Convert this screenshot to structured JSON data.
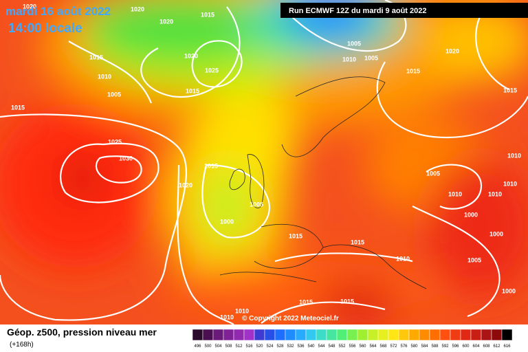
{
  "header": {
    "date": "mardi 16 août 2022",
    "time": "14:00 locale",
    "run": "Run ECMWF 12Z du mardi 9 août 2022"
  },
  "copyright": "© Copyright 2022 Meteociel.fr",
  "legend": {
    "title": "Géop. z500, pression niveau mer",
    "lead": "(+168h)",
    "scale": [
      "496",
      "500",
      "504",
      "508",
      "512",
      "516",
      "520",
      "524",
      "528",
      "532",
      "536",
      "540",
      "544",
      "548",
      "552",
      "556",
      "560",
      "564",
      "568",
      "572",
      "576",
      "580",
      "584",
      "588",
      "592",
      "596",
      "600",
      "604",
      "608",
      "612",
      "616"
    ]
  },
  "isobar_labels": [
    "1020",
    "1020",
    "1015",
    "1020",
    "1015",
    "1020",
    "1010",
    "1025",
    "1005",
    "1015",
    "1015",
    "1025",
    "1030",
    "1015",
    "1020",
    "1005",
    "1000",
    "1015",
    "1015",
    "1010",
    "1005",
    "1010",
    "1005",
    "1015",
    "1020",
    "1015",
    "1010",
    "1005",
    "1010",
    "1010",
    "1010",
    "1000",
    "1000",
    "1005",
    "1000",
    "1015",
    "1015",
    "1010",
    "1010"
  ]
}
